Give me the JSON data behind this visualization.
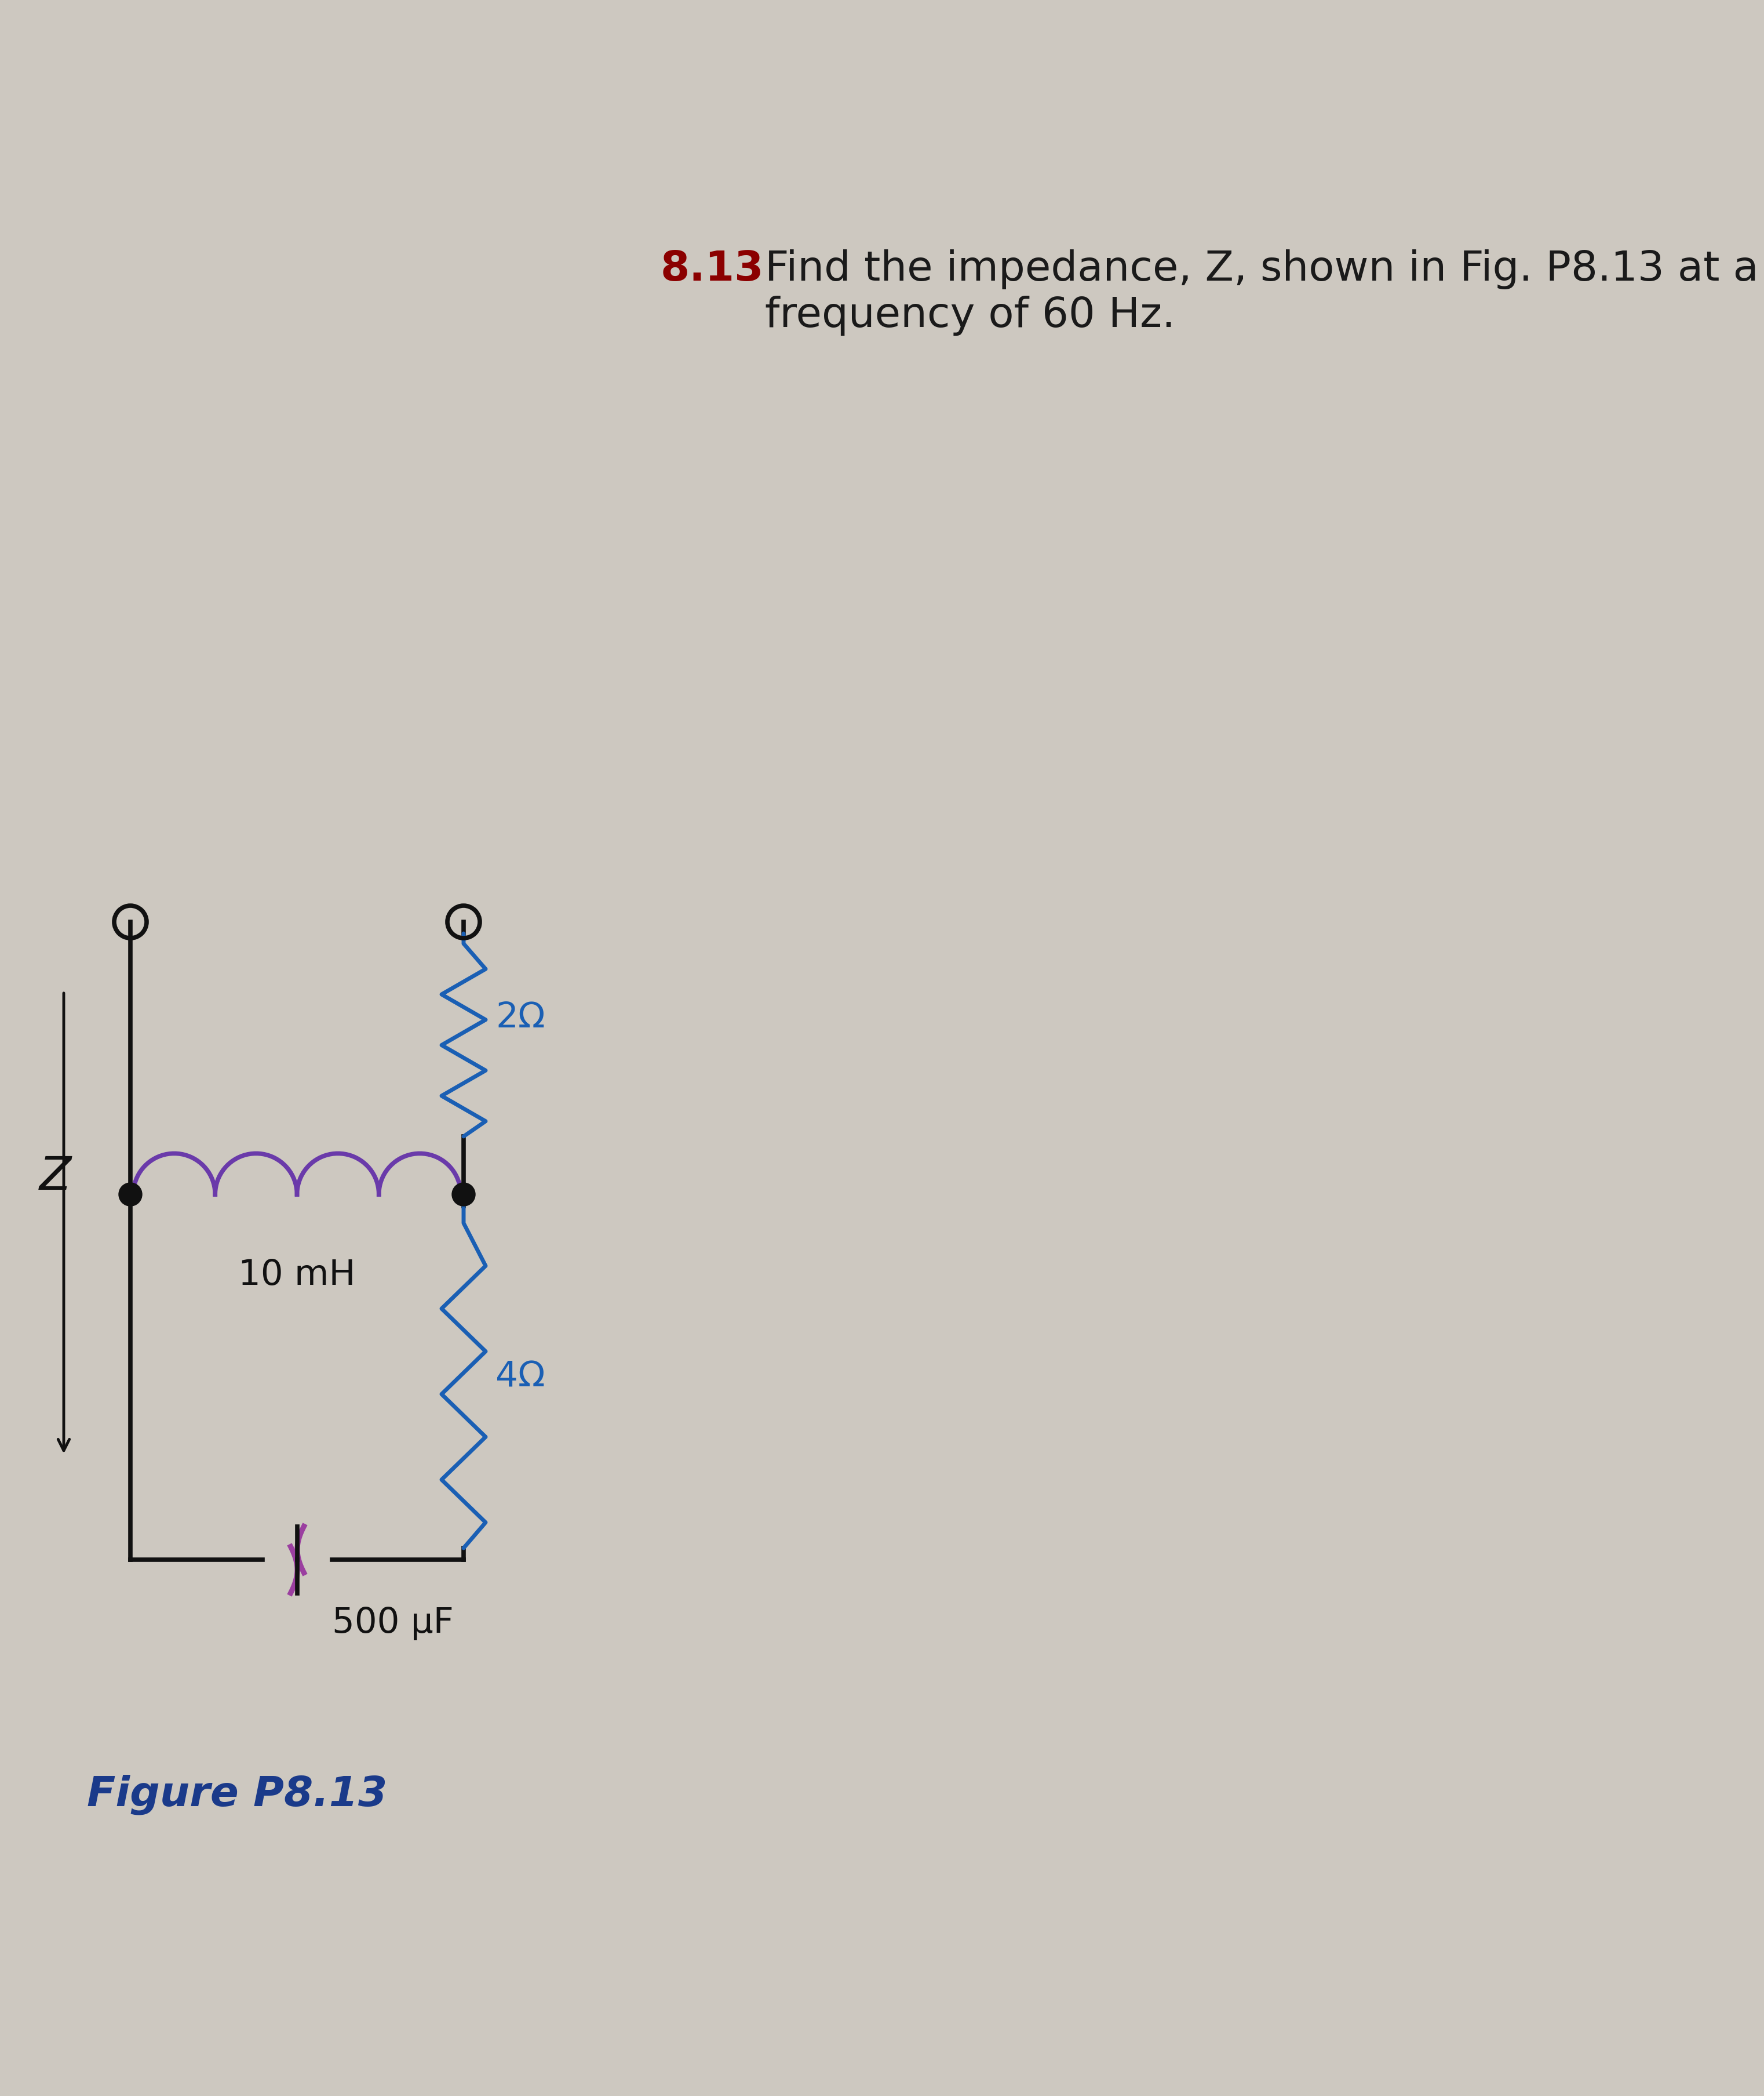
{
  "bg_color": "#cdc8c0",
  "title_number": "8.13",
  "title_number_color": "#8B0000",
  "title_text": "Find the impedance, Z, shown in Fig. P8.13 at a\nfrequency of 60 Hz.",
  "title_text_color": "#1a1a1a",
  "title_fontsize": 52,
  "figure_label": "Figure P8.13",
  "figure_label_color": "#1a3a8a",
  "figure_label_fontsize": 52,
  "circuit_wire_color": "#111111",
  "resistor_color": "#1a5fb4",
  "inductor_color": "#6a3aaa",
  "capacitor_color": "#9b3fa0",
  "z_arrow_color": "#111111",
  "z_label_color": "#111111",
  "res2_label": "2Ω",
  "res4_label": "4Ω",
  "ind_label": "10 mH",
  "cap_label": "500 μF",
  "z_label": "Z"
}
